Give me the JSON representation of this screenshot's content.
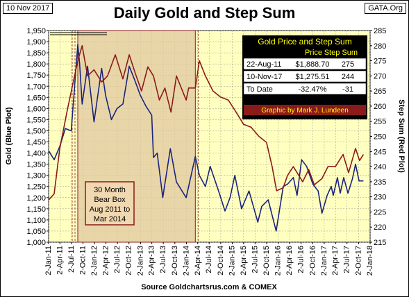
{
  "header": {
    "date_label": "10 Nov 2017",
    "site_label": "GATA.Org",
    "title": "Daily Gold and Step Sum"
  },
  "colors": {
    "background": "#fff",
    "plot_area": "#ffffc0",
    "gold_line": "#1a237e",
    "step_sum_line": "#8b1a1a",
    "bear_box_fill": "#e0c8a0",
    "bear_box_stroke": "#8b1a1a",
    "table_fill": "#000000",
    "table_title_text": "#ffff00"
  },
  "chart_data": {
    "type": "line",
    "title": "Daily Gold and Step Sum",
    "xlabel": "Source Goldchartsrus.com & COMEX",
    "ylabel": "Gold   (Blue Plot)",
    "y2label": "Step Sum   (Red Plot)",
    "x_ticks": [
      "2-Jan-11",
      "2-Apr-11",
      "2-Jul-11",
      "2-Oct-11",
      "2-Jan-12",
      "2-Apr-12",
      "2-Jul-12",
      "2-Oct-12",
      "2-Jan-13",
      "2-Apr-13",
      "2-Jul-13",
      "2-Oct-13",
      "2-Jan-14",
      "2-Apr-14",
      "2-Jul-14",
      "2-Oct-14",
      "2-Jan-15",
      "2-Apr-15",
      "2-Jul-15",
      "2-Oct-15",
      "2-Jan-16",
      "2-Apr-16",
      "2-Jul-16",
      "2-Oct-16",
      "2-Jan-17",
      "2-Apr-17",
      "2-Jul-17",
      "2-Oct-17",
      "2-Jan-18"
    ],
    "ylim": [
      1000,
      1950
    ],
    "y_ticks": [
      1000,
      1050,
      1100,
      1150,
      1200,
      1250,
      1300,
      1350,
      1400,
      1450,
      1500,
      1550,
      1600,
      1650,
      1700,
      1750,
      1800,
      1850,
      1900,
      1950
    ],
    "y_tick_labels": [
      "1,000",
      "1,050",
      "1,100",
      "1,150",
      "1,200",
      "1,250",
      "1,300",
      "1,350",
      "1,400",
      "1,450",
      "1,500",
      "1,550",
      "1,600",
      "1,650",
      "1,700",
      "1,750",
      "1,800",
      "1,850",
      "1,900",
      "1,950"
    ],
    "y2lim": [
      215,
      285
    ],
    "y2_ticks": [
      215,
      220,
      225,
      230,
      235,
      240,
      245,
      250,
      255,
      260,
      265,
      270,
      275,
      280,
      285
    ],
    "grid": true,
    "series": [
      {
        "name": "Gold",
        "axis": "left",
        "color": "#1a237e",
        "x": [
          "2011-01-03",
          "2011-02-15",
          "2011-04-01",
          "2011-05-15",
          "2011-07-01",
          "2011-08-22",
          "2011-09-06",
          "2011-09-26",
          "2011-11-08",
          "2011-12-29",
          "2012-02-28",
          "2012-03-30",
          "2012-05-16",
          "2012-06-29",
          "2012-08-15",
          "2012-10-04",
          "2012-11-15",
          "2012-12-31",
          "2013-02-15",
          "2013-04-01",
          "2013-04-15",
          "2013-05-15",
          "2013-06-28",
          "2013-08-27",
          "2013-10-15",
          "2013-12-31",
          "2014-03-14",
          "2014-04-15",
          "2014-06-02",
          "2014-07-10",
          "2014-09-15",
          "2014-11-05",
          "2014-12-15",
          "2015-01-22",
          "2015-03-17",
          "2015-05-15",
          "2015-07-24",
          "2015-08-24",
          "2015-10-14",
          "2015-12-17",
          "2016-02-11",
          "2016-03-15",
          "2016-05-02",
          "2016-05-31",
          "2016-07-06",
          "2016-08-15",
          "2016-10-04",
          "2016-11-15",
          "2016-12-15",
          "2017-01-25",
          "2017-02-27",
          "2017-03-15",
          "2017-04-17",
          "2017-05-09",
          "2017-06-06",
          "2017-07-10",
          "2017-08-15",
          "2017-09-08",
          "2017-10-06",
          "2017-11-10"
        ],
        "values": [
          1410,
          1370,
          1430,
          1510,
          1500,
          1888,
          1800,
          1620,
          1790,
          1540,
          1780,
          1660,
          1550,
          1600,
          1620,
          1790,
          1730,
          1660,
          1610,
          1570,
          1380,
          1400,
          1200,
          1420,
          1270,
          1200,
          1385,
          1300,
          1250,
          1340,
          1230,
          1140,
          1200,
          1300,
          1150,
          1230,
          1090,
          1160,
          1190,
          1050,
          1250,
          1260,
          1290,
          1210,
          1370,
          1340,
          1260,
          1230,
          1130,
          1210,
          1250,
          1210,
          1290,
          1220,
          1290,
          1220,
          1285,
          1350,
          1275,
          1275
        ]
      },
      {
        "name": "Step Sum",
        "axis": "right",
        "color": "#8b1a1a",
        "x": [
          "2011-01-03",
          "2011-02-15",
          "2011-04-01",
          "2011-06-01",
          "2011-08-22",
          "2011-09-26",
          "2011-11-08",
          "2011-12-29",
          "2012-02-28",
          "2012-04-15",
          "2012-06-15",
          "2012-08-15",
          "2012-10-04",
          "2012-11-20",
          "2013-01-10",
          "2013-03-01",
          "2013-04-15",
          "2013-06-01",
          "2013-07-15",
          "2013-09-01",
          "2013-10-15",
          "2013-12-31",
          "2014-01-20",
          "2014-03-14",
          "2014-04-15",
          "2014-06-02",
          "2014-08-01",
          "2014-10-01",
          "2014-12-01",
          "2015-02-01",
          "2015-04-01",
          "2015-06-01",
          "2015-08-01",
          "2015-10-01",
          "2015-11-15",
          "2015-12-20",
          "2016-02-11",
          "2016-03-15",
          "2016-05-01",
          "2016-07-15",
          "2016-09-01",
          "2016-10-15",
          "2016-12-15",
          "2017-02-01",
          "2017-04-01",
          "2017-06-01",
          "2017-07-15",
          "2017-09-08",
          "2017-10-10",
          "2017-11-10"
        ],
        "values": [
          229,
          231,
          246,
          259,
          275,
          280,
          270,
          272,
          268,
          270,
          277,
          269,
          277,
          271,
          265,
          273,
          270,
          262,
          266,
          258,
          270,
          262,
          266,
          266,
          275,
          270,
          265,
          263,
          262,
          258,
          254,
          253,
          250,
          248,
          240,
          232,
          233,
          237,
          240,
          235,
          239,
          234,
          236,
          240,
          240,
          244,
          238,
          246,
          242,
          244
        ]
      }
    ],
    "annotations": [
      {
        "type": "box",
        "label_lines": [
          "30 Month",
          "Bear Box",
          "Aug 2011 to",
          "Mar 2014"
        ],
        "x_start": "2011-08-22",
        "x_end": "2014-03-14"
      }
    ],
    "table": {
      "title": "Gold Price and Step Sum",
      "columns": [
        "",
        "Price",
        "Step Sum"
      ],
      "rows": [
        [
          "22-Aug-11",
          "$1,888.70",
          "275"
        ],
        [
          "10-Nov-17",
          "$1,275.51",
          "244"
        ],
        [
          "To Date",
          "-32.47%",
          "-31"
        ]
      ],
      "footer": "Graphic by Mark J. Lundeen"
    }
  }
}
